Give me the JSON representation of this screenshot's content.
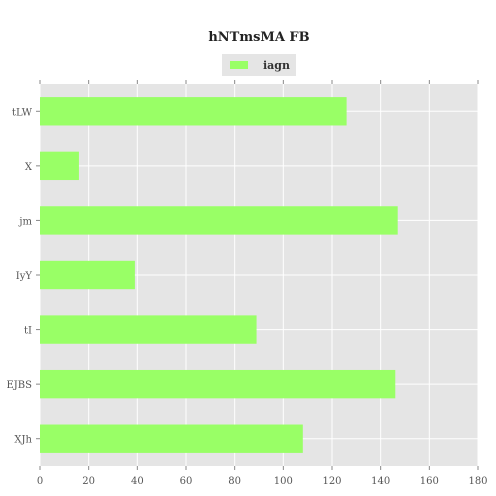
{
  "chart_data": {
    "type": "bar",
    "orientation": "horizontal",
    "title": "hNTmsMA  FB",
    "xlabel": "",
    "ylabel": "",
    "categories": [
      "tLW",
      "X",
      "jm",
      "IyY",
      "tI",
      "EJBS",
      "XJh"
    ],
    "series": [
      {
        "name": "iagn",
        "values": [
          126,
          16,
          147,
          39,
          89,
          146,
          108
        ],
        "color": "#99ff66"
      }
    ],
    "xlim": [
      0,
      180
    ],
    "xticks": [
      0,
      20,
      40,
      60,
      80,
      100,
      120,
      140,
      160,
      180
    ],
    "grid": true,
    "legend_position": "top-center",
    "colors": {
      "plot_background": "#e5e5e5",
      "grid": "#ffffff",
      "bar": "#99ff66"
    }
  }
}
